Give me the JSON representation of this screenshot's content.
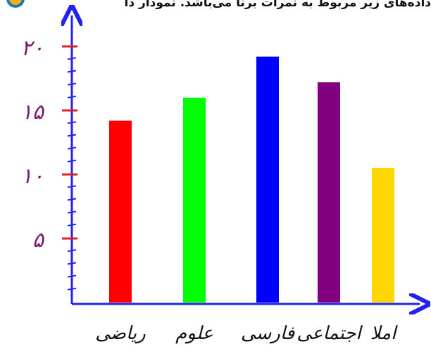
{
  "header": {
    "text": "داده‌های زیر مربوط به نمرات برنا می‌باشد. نمودار دا"
  },
  "colors": {
    "axis": "#2222ee",
    "tick_mark": "#e02020",
    "minor_tick": "#2222ee",
    "ytick_label": "#7a1a6e"
  },
  "chart_data": {
    "type": "bar",
    "categories": [
      "ریاضی",
      "علوم",
      "فارسی",
      "اجتماعی",
      "املا"
    ],
    "values": [
      14.2,
      16,
      19.2,
      17.2,
      10.5
    ],
    "colors": [
      "#ff0000",
      "#00ff00",
      "#0000ff",
      "#800080",
      "#ffd700"
    ],
    "yticks": [
      {
        "value": 5,
        "label": "۵"
      },
      {
        "value": 10,
        "label": "۱۰"
      },
      {
        "value": 15,
        "label": "۱۵"
      },
      {
        "value": 20,
        "label": "۲۰"
      }
    ],
    "title": "",
    "xlabel": "",
    "ylabel": "",
    "ylim": [
      0,
      21
    ]
  }
}
